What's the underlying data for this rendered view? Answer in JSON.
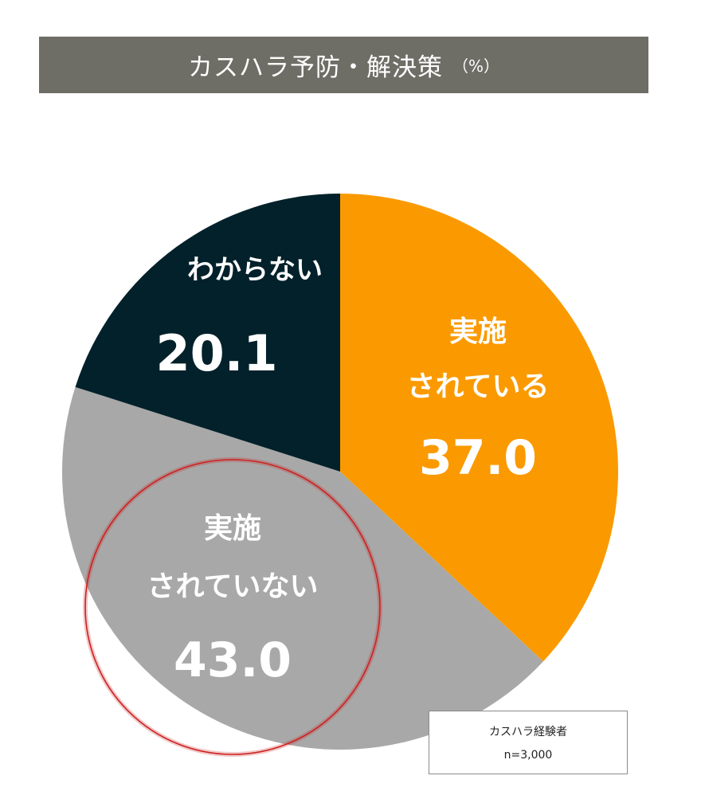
{
  "title": {
    "text": "カスハラ予防・解決策",
    "unit": "（%）"
  },
  "chart_data": {
    "type": "pie",
    "title": "カスハラ予防・解決策",
    "unit": "%",
    "slices": [
      {
        "id": "implemented",
        "label_lines": [
          "実施",
          "されている"
        ],
        "value": 37.0,
        "value_label": "37.0",
        "color": "#fa9a00"
      },
      {
        "id": "not-implemented",
        "label_lines": [
          "実施",
          "されていない"
        ],
        "value": 43.0,
        "value_label": "43.0",
        "color": "#a8a8a8"
      },
      {
        "id": "unknown",
        "label_lines": [
          "わからない"
        ],
        "value": 20.1,
        "value_label": "20.1",
        "color": "#03212a"
      }
    ],
    "start": "12 o'clock",
    "direction": "clockwise",
    "highlight": {
      "slice": "not-implemented",
      "shape": "circle",
      "color": "#cc2222"
    },
    "legend": "none"
  },
  "note": {
    "line1": "カスハラ経験者",
    "line2": "n=3,000"
  }
}
